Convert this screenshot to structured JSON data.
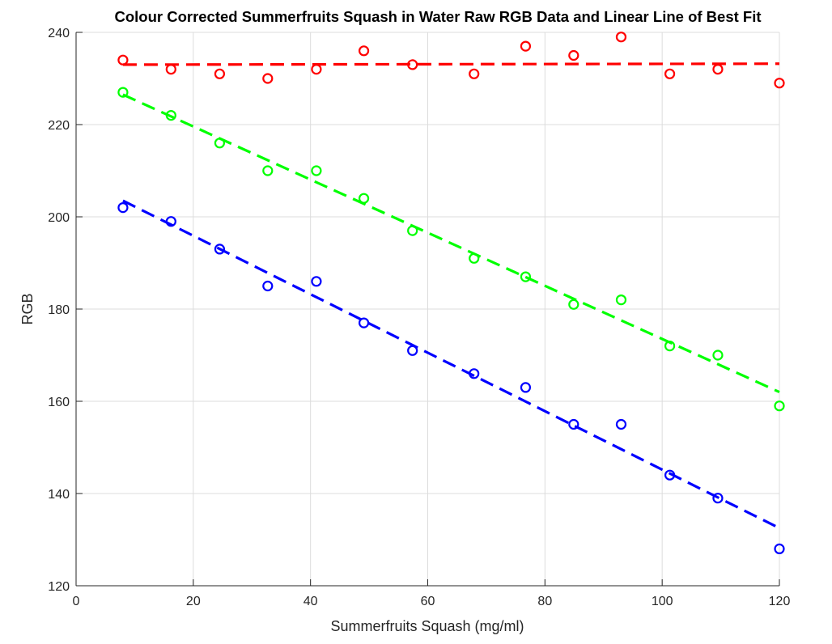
{
  "chart_data": {
    "type": "scatter",
    "title": "Colour Corrected Summerfruits Squash in Water Raw RGB Data and Linear Line of Best Fit",
    "xlabel": "Summerfruits Squash (mg/ml)",
    "ylabel": "RGB",
    "xlim": [
      0,
      120
    ],
    "ylim": [
      120,
      240
    ],
    "xticks": [
      0,
      20,
      40,
      60,
      80,
      100,
      120
    ],
    "yticks": [
      120,
      140,
      160,
      180,
      200,
      220,
      240
    ],
    "grid": true,
    "x": [
      8,
      16.2,
      24.5,
      32.7,
      41,
      49.1,
      57.4,
      67.9,
      76.7,
      84.9,
      93,
      101.3,
      109.5,
      120
    ],
    "series": [
      {
        "color": "#ff0000",
        "marker": "circle",
        "values": [
          234,
          232,
          231,
          230,
          232,
          236,
          233,
          231,
          237,
          235,
          239,
          231,
          232,
          229
        ],
        "fit": {
          "x": [
            8,
            120
          ],
          "y": [
            233,
            233.2
          ]
        }
      },
      {
        "color": "#00ff00",
        "marker": "circle",
        "values": [
          227,
          222,
          216,
          210,
          210,
          204,
          197,
          191,
          187,
          181,
          182,
          172,
          170,
          159
        ],
        "fit": {
          "x": [
            8,
            120
          ],
          "y": [
            226.5,
            162
          ]
        }
      },
      {
        "color": "#0000ff",
        "marker": "circle",
        "values": [
          202,
          199,
          193,
          185,
          186,
          177,
          171,
          166,
          163,
          155,
          155,
          144,
          139,
          128
        ],
        "fit": {
          "x": [
            8,
            120
          ],
          "y": [
            203.5,
            132.5
          ]
        }
      }
    ]
  }
}
